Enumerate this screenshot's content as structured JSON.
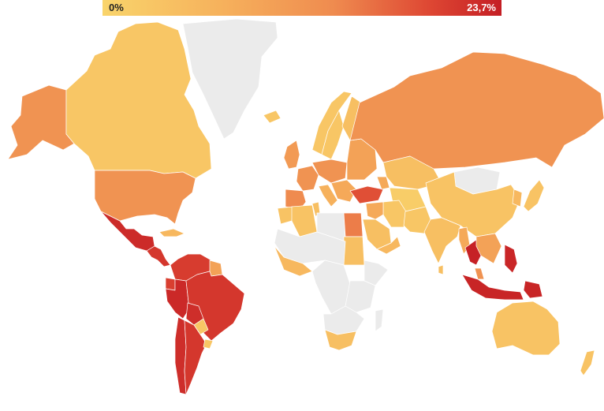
{
  "legend": {
    "min_label": "0%",
    "max_label": "23,7%",
    "min_value": 0,
    "max_value": 23.7
  },
  "colors": {
    "no_data": "#ebebeb",
    "scale": [
      "#f9d46b",
      "#f6b15c",
      "#ef8b4f",
      "#de4733",
      "#c41e24"
    ]
  },
  "regions": [
    {
      "id": "greenland",
      "level": null
    },
    {
      "id": "canada",
      "level": 0.1
    },
    {
      "id": "usa",
      "level": 0.45
    },
    {
      "id": "alaska",
      "level": 0.45
    },
    {
      "id": "mexico",
      "level": 0.92
    },
    {
      "id": "central-america",
      "level": 0.85
    },
    {
      "id": "cuba",
      "level": 0.2
    },
    {
      "id": "colombia-venezuela",
      "level": 0.82
    },
    {
      "id": "guianas",
      "level": 0.35
    },
    {
      "id": "ecuador",
      "level": 0.8
    },
    {
      "id": "peru",
      "level": 0.93
    },
    {
      "id": "brazil",
      "level": 0.85
    },
    {
      "id": "bolivia",
      "level": 0.9
    },
    {
      "id": "paraguay",
      "level": 0.1
    },
    {
      "id": "uruguay",
      "level": 0.1
    },
    {
      "id": "chile",
      "level": 0.9
    },
    {
      "id": "argentina",
      "level": 0.85
    },
    {
      "id": "iceland",
      "level": 0.1
    },
    {
      "id": "uk-ireland",
      "level": 0.4
    },
    {
      "id": "norway",
      "level": 0.1
    },
    {
      "id": "sweden",
      "level": 0.1
    },
    {
      "id": "finland",
      "level": 0.15
    },
    {
      "id": "france",
      "level": 0.45
    },
    {
      "id": "iberia",
      "level": 0.5
    },
    {
      "id": "central-europe",
      "level": 0.45
    },
    {
      "id": "italy",
      "level": 0.25
    },
    {
      "id": "eastern-europe",
      "level": 0.35
    },
    {
      "id": "balkans",
      "level": 0.3
    },
    {
      "id": "russia",
      "level": 0.45
    },
    {
      "id": "turkey",
      "level": 0.72
    },
    {
      "id": "caucasus",
      "level": 0.3
    },
    {
      "id": "kazakhstan",
      "level": 0.15
    },
    {
      "id": "central-asia",
      "level": 0.05
    },
    {
      "id": "mongolia",
      "level": null
    },
    {
      "id": "china",
      "level": 0.12
    },
    {
      "id": "korea",
      "level": 0.2
    },
    {
      "id": "japan",
      "level": 0.12
    },
    {
      "id": "iran",
      "level": 0.1
    },
    {
      "id": "middle-east",
      "level": 0.3
    },
    {
      "id": "saudi-arabia",
      "level": 0.15
    },
    {
      "id": "yemen-oman",
      "level": 0.2
    },
    {
      "id": "afghanistan-pakistan",
      "level": 0.1
    },
    {
      "id": "india",
      "level": 0.15
    },
    {
      "id": "sri-lanka",
      "level": 0.15
    },
    {
      "id": "myanmar",
      "level": 0.3
    },
    {
      "id": "thailand",
      "level": 0.98
    },
    {
      "id": "indochina",
      "level": 0.35
    },
    {
      "id": "malaysia",
      "level": 0.45
    },
    {
      "id": "philippines",
      "level": 0.95
    },
    {
      "id": "indonesia",
      "level": 0.96
    },
    {
      "id": "papua",
      "level": 0.96
    },
    {
      "id": "australia",
      "level": 0.12
    },
    {
      "id": "new-zealand",
      "level": 0.12
    },
    {
      "id": "morocco",
      "level": 0.12
    },
    {
      "id": "algeria",
      "level": 0.12
    },
    {
      "id": "tunisia",
      "level": 0.15
    },
    {
      "id": "libya",
      "level": null
    },
    {
      "id": "egypt",
      "level": 0.55
    },
    {
      "id": "sudan",
      "level": 0.15
    },
    {
      "id": "sahel",
      "level": null
    },
    {
      "id": "west-africa",
      "level": 0.2
    },
    {
      "id": "central-africa",
      "level": null
    },
    {
      "id": "horn-africa",
      "level": null
    },
    {
      "id": "east-africa",
      "level": null
    },
    {
      "id": "southern-africa",
      "level": null
    },
    {
      "id": "south-africa",
      "level": 0.15
    },
    {
      "id": "madagascar",
      "level": null
    }
  ]
}
